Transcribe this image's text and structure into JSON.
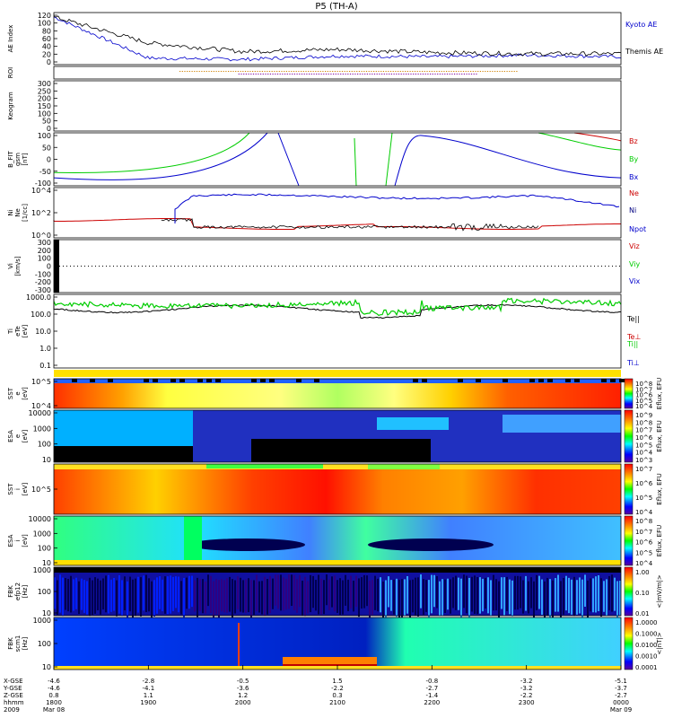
{
  "title": "P5 (TH-A)",
  "colors": {
    "blue": "#0000cc",
    "red": "#cc0000",
    "green": "#00cc00",
    "black": "#000000"
  },
  "chart_data": [
    {
      "type": "line",
      "panel": "ae",
      "ylabel": "AE Index",
      "ylim": [
        0,
        120
      ],
      "yticks": [
        "120",
        "100",
        "80",
        "60",
        "40",
        "20",
        "0"
      ],
      "x": [
        1800,
        1900,
        2000,
        2100,
        2200,
        2300,
        2400
      ],
      "series": [
        {
          "name": "Kyoto AE",
          "values": [
            110,
            15,
            12,
            20,
            18,
            22,
            18
          ]
        },
        {
          "name": "Themis AE",
          "values": [
            110,
            50,
            30,
            35,
            28,
            25,
            25
          ]
        }
      ]
    },
    {
      "type": "line",
      "panel": "roi",
      "ylabel": "ROI"
    },
    {
      "type": "line",
      "panel": "keogram",
      "ylabel": "Keogram",
      "yticks": [
        "300",
        "250",
        "200",
        "150",
        "100",
        "50",
        "0"
      ]
    },
    {
      "type": "line",
      "panel": "bfield",
      "ylabel": [
        "B_FIT",
        "gsm",
        "[nT]"
      ],
      "ylim": [
        -100,
        100
      ],
      "yticks": [
        "100",
        "50",
        "0",
        "-50",
        "-100"
      ],
      "series": [
        {
          "name": "Bz"
        },
        {
          "name": "By"
        },
        {
          "name": "Bx"
        }
      ]
    },
    {
      "type": "line",
      "panel": "density",
      "ylabel": [
        "Ni",
        "Ne",
        "[1/cc]"
      ],
      "yticks": [
        "10^4",
        "10^2",
        "10^0"
      ],
      "series": [
        {
          "name": "Ne"
        },
        {
          "name": "Ni"
        },
        {
          "name": "Npot"
        }
      ]
    },
    {
      "type": "line",
      "panel": "velocity",
      "ylabel": [
        "Vi",
        "[km/s]"
      ],
      "ylim": [
        -300,
        300
      ],
      "yticks": [
        "300",
        "200",
        "100",
        "0",
        "-100",
        "-200",
        "-300"
      ],
      "series": [
        {
          "name": "Viz"
        },
        {
          "name": "Viy"
        },
        {
          "name": "Vix"
        }
      ]
    },
    {
      "type": "line",
      "panel": "temperature",
      "ylabel": [
        "Ti",
        "eTe",
        "[eV]"
      ],
      "yticks": [
        "1000.0",
        "100.0",
        "10.0",
        "1.0",
        "0.1"
      ],
      "series": [
        {
          "name": "Te||"
        },
        {
          "name": "Te⊥"
        },
        {
          "name": "Ti||"
        },
        {
          "name": "Ti⊥"
        }
      ]
    },
    {
      "type": "heatmap",
      "panel": "sst_e",
      "ylabel": [
        "SST",
        "e",
        "[eV]"
      ],
      "yticks": [
        "10^5",
        "10^4"
      ],
      "cbar_label": "Eflux, EFU",
      "cbar_ticks": [
        "10^8",
        "10^7",
        "10^6",
        "10^5",
        "10^4"
      ]
    },
    {
      "type": "heatmap",
      "panel": "esa_e",
      "ylabel": [
        "ESA",
        "e",
        "[eV]"
      ],
      "yticks": [
        "10000",
        "1000",
        "100",
        "10"
      ],
      "cbar_label": "Eflux, EFU",
      "cbar_ticks": [
        "10^9",
        "10^8",
        "10^7",
        "10^6",
        "10^5",
        "10^4",
        "10^3"
      ]
    },
    {
      "type": "heatmap",
      "panel": "sst_i",
      "ylabel": [
        "SST",
        "i",
        "[eV]"
      ],
      "yticks": [
        "10^5"
      ],
      "cbar_label": "Eflux, EFU",
      "cbar_ticks": [
        "10^7",
        "10^6",
        "10^5",
        "10^4"
      ]
    },
    {
      "type": "heatmap",
      "panel": "esa_i",
      "ylabel": [
        "ESA",
        "i",
        "[eV]"
      ],
      "yticks": [
        "10000",
        "1000",
        "100",
        "10"
      ],
      "cbar_label": "Eflux, EFU",
      "cbar_ticks": [
        "10^8",
        "10^7",
        "10^6",
        "10^5",
        "10^4"
      ]
    },
    {
      "type": "heatmap",
      "panel": "fbk_e",
      "ylabel": [
        "FBK",
        "efp12",
        "[Hz]"
      ],
      "yticks": [
        "1000",
        "100",
        "10"
      ],
      "cbar_label": "<|mV/m|>",
      "cbar_ticks": [
        "1.00",
        "0.10",
        "0.01"
      ]
    },
    {
      "type": "heatmap",
      "panel": "fbk_b",
      "ylabel": [
        "FBK",
        "scm1",
        "[Hz]"
      ],
      "yticks": [
        "1000",
        "100",
        "10"
      ],
      "cbar_label": "<|nT|>",
      "cbar_ticks": [
        "1.0000",
        "0.1000",
        "0.0100",
        "0.0010",
        "0.0001"
      ]
    }
  ],
  "xaxis": {
    "row_labels": [
      "X-GSE",
      "Y-GSE",
      "Z-GSE",
      "hhmm",
      "2009"
    ],
    "columns": [
      {
        "x": "-4.6",
        "y": "-4.6",
        "z": "0.8",
        "hhmm": "1800",
        "date": "Mar 08"
      },
      {
        "x": "-2.8",
        "y": "-4.1",
        "z": "1.1",
        "hhmm": "1900",
        "date": ""
      },
      {
        "x": "-0.5",
        "y": "-3.6",
        "z": "1.2",
        "hhmm": "2000",
        "date": ""
      },
      {
        "x": "1.5",
        "y": "-2.2",
        "z": "0.3",
        "hhmm": "2100",
        "date": ""
      },
      {
        "x": "-0.8",
        "y": "-2.7",
        "z": "-1.4",
        "hhmm": "2200",
        "date": ""
      },
      {
        "x": "-3.2",
        "y": "-3.2",
        "z": "-2.2",
        "hhmm": "2300",
        "date": ""
      },
      {
        "x": "-5.1",
        "y": "-3.7",
        "z": "-2.7",
        "hhmm": "0000",
        "date": "Mar 09"
      }
    ]
  }
}
